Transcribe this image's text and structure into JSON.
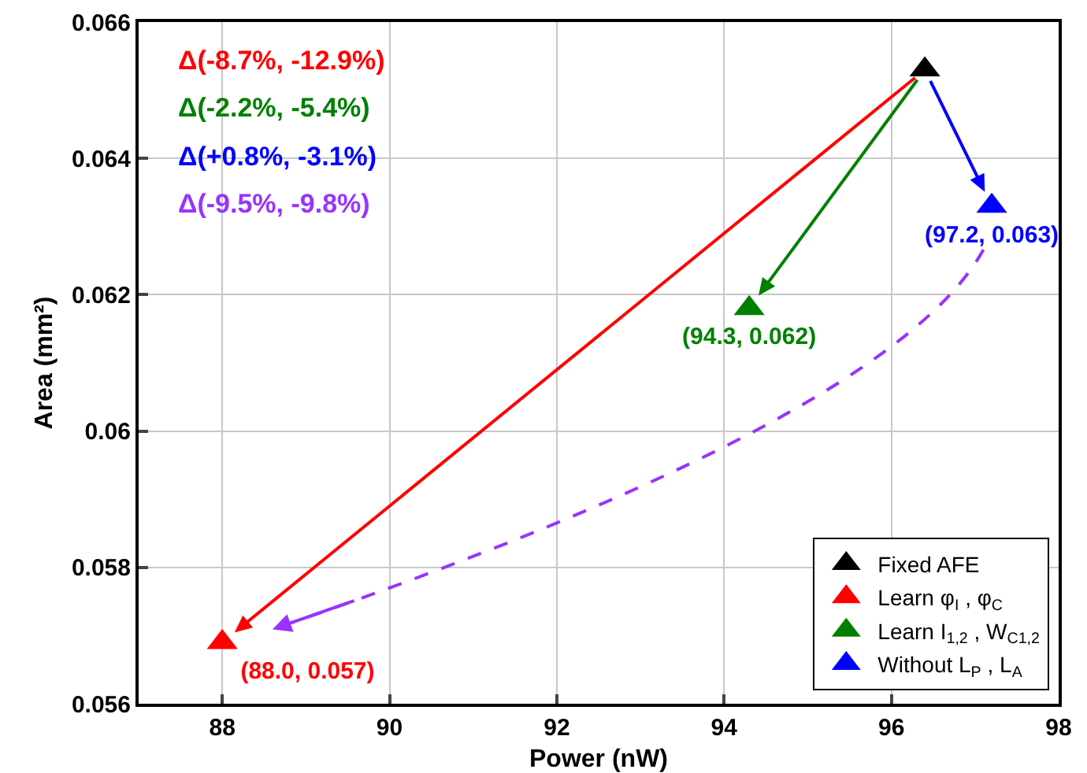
{
  "chart_data": {
    "type": "scatter",
    "xlabel": "Power (nW)",
    "ylabel": "Area (mm²)",
    "xlim": [
      87,
      98
    ],
    "xticks": [
      88,
      90,
      92,
      94,
      96,
      98
    ],
    "ylim": [
      0.056,
      0.066
    ],
    "yticks": [
      0.056,
      0.058,
      0.06,
      0.062,
      0.064,
      0.066
    ],
    "grid": true,
    "legend": "bottom right",
    "marker": "triangle",
    "series": [
      {
        "name": "Fixed AFE",
        "color": "#000000",
        "x": [
          96.4
        ],
        "values": [
          0.0653
        ],
        "value_labels": [
          null
        ]
      },
      {
        "name": "Learn φ$_{I}$ , φ$_{C}$",
        "color": "#ff0000",
        "x": [
          88.0
        ],
        "values": [
          0.0569
        ],
        "value_labels": [
          "(88.0, 0.057)"
        ]
      },
      {
        "name": "Learn I$_{1,2}$ , W$_{C1,2}$",
        "color": "#008000",
        "x": [
          94.3
        ],
        "values": [
          0.0618
        ],
        "value_labels": [
          "(94.3, 0.062)"
        ]
      },
      {
        "name": "Without L$_{P}$ , L$_{A}$",
        "color": "#0000ff",
        "x": [
          97.2
        ],
        "values": [
          0.0633
        ],
        "value_labels": [
          "(97.2, 0.063)"
        ]
      }
    ],
    "annotations": [
      "Δ(-8.7%, -12.9%)",
      "Δ(-2.2%, -5.4%)",
      "Δ(+0.8%, -3.1%)",
      "Δ(-9.5%, -9.8%)"
    ]
  }
}
